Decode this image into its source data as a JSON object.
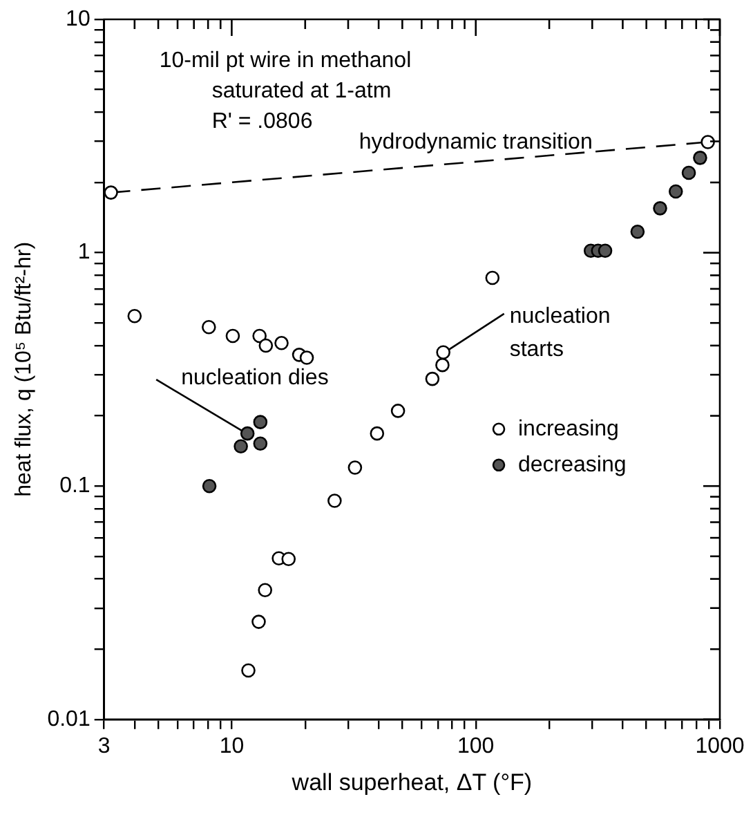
{
  "chart_data": {
    "type": "scatter",
    "xlabel": "wall superheat, ΔT (°F)",
    "ylabel": "heat flux, q (10⁵ Btu/ft²-hr)",
    "annotations": [
      "10-mil pt wire in methanol",
      "saturated at 1-atm",
      "R' = .0806",
      {
        "text": "hydrodynamic transition",
        "x": 100,
        "y": 2.45
      },
      {
        "text": "nucleation dies",
        "x": 11.6,
        "y": 0.168
      },
      {
        "text": "nucleation starts",
        "x": 73.6,
        "y": 0.374
      }
    ],
    "series": [
      {
        "name": "increasing",
        "color": "#ffffff",
        "x": [
          3.2,
          4.0,
          8.06,
          10.1,
          11.7,
          12.9,
          13.0,
          13.7,
          13.8,
          15.6,
          16.0,
          17.1,
          18.9,
          20.3,
          26.4,
          32,
          39.4,
          48,
          66.4,
          73,
          73.6,
          117,
          893
        ],
        "values": [
          1.81,
          0.535,
          0.48,
          0.44,
          0.0162,
          0.0262,
          0.44,
          0.0358,
          0.4,
          0.049,
          0.41,
          0.0487,
          0.365,
          0.355,
          0.0865,
          0.12,
          0.168,
          0.21,
          0.288,
          0.33,
          0.374,
          0.78,
          2.98
        ]
      },
      {
        "name": "decreasing",
        "color": "#555555",
        "x": [
          8.1,
          10.9,
          11.6,
          13.1,
          13.1,
          296,
          317,
          339,
          460,
          569,
          660,
          746,
          830
        ],
        "values": [
          0.1,
          0.148,
          0.168,
          0.188,
          0.152,
          1.02,
          1.02,
          1.02,
          1.23,
          1.55,
          1.83,
          2.2,
          2.55
        ]
      },
      {
        "type": "line",
        "color": "#000000",
        "line_style": "dashed",
        "marker": "none",
        "x": [
          3.2,
          893
        ],
        "values": [
          1.81,
          2.98
        ]
      }
    ],
    "log": "xy",
    "xlim": [
      3,
      1000
    ],
    "ylim": [
      0.01,
      10
    ],
    "xticks": [
      3,
      {
        "value": 4,
        "label": null
      },
      {
        "value": 5,
        "label": null
      },
      {
        "value": 6,
        "label": null
      },
      {
        "value": 7,
        "label": null
      },
      {
        "value": 8,
        "label": null
      },
      {
        "value": 9,
        "label": null
      },
      10,
      {
        "value": 20,
        "label": null
      },
      {
        "value": 30,
        "label": null
      },
      {
        "value": 40,
        "label": null
      },
      {
        "value": 50,
        "label": null
      },
      {
        "value": 60,
        "label": null
      },
      {
        "value": 70,
        "label": null
      },
      {
        "value": 80,
        "label": null
      },
      {
        "value": 90,
        "label": null
      },
      100,
      {
        "value": 200,
        "label": null
      },
      {
        "value": 300,
        "label": null
      },
      {
        "value": 400,
        "label": null
      },
      {
        "value": 500,
        "label": null
      },
      {
        "value": 600,
        "label": null
      },
      {
        "value": 700,
        "label": null
      },
      {
        "value": 800,
        "label": null
      },
      {
        "value": 900,
        "label": null
      },
      1000
    ],
    "yticks": [
      0.01,
      {
        "value": 0.02,
        "label": null
      },
      {
        "value": 0.03,
        "label": null
      },
      {
        "value": 0.04,
        "label": null
      },
      {
        "value": 0.05,
        "label": null
      },
      {
        "value": 0.06,
        "label": null
      },
      {
        "value": 0.07,
        "label": null
      },
      {
        "value": 0.08,
        "label": null
      },
      {
        "value": 0.09,
        "label": null
      },
      0.1,
      {
        "value": 0.2,
        "label": null
      },
      {
        "value": 0.3,
        "label": null
      },
      {
        "value": 0.4,
        "label": null
      },
      {
        "value": 0.5,
        "label": null
      },
      {
        "value": 0.6,
        "label": null
      },
      {
        "value": 0.7,
        "label": null
      },
      {
        "value": 0.8,
        "label": null
      },
      {
        "value": 0.9,
        "label": null
      },
      1,
      {
        "value": 2,
        "label": null
      },
      {
        "value": 3,
        "label": null
      },
      {
        "value": 4,
        "label": null
      },
      {
        "value": 5,
        "label": null
      },
      {
        "value": 6,
        "label": null
      },
      {
        "value": 7,
        "label": null
      },
      {
        "value": 8,
        "label": null
      },
      {
        "value": 9,
        "label": null
      },
      10
    ],
    "grid": false,
    "legend": "bottom right",
    "marker": "circle"
  }
}
